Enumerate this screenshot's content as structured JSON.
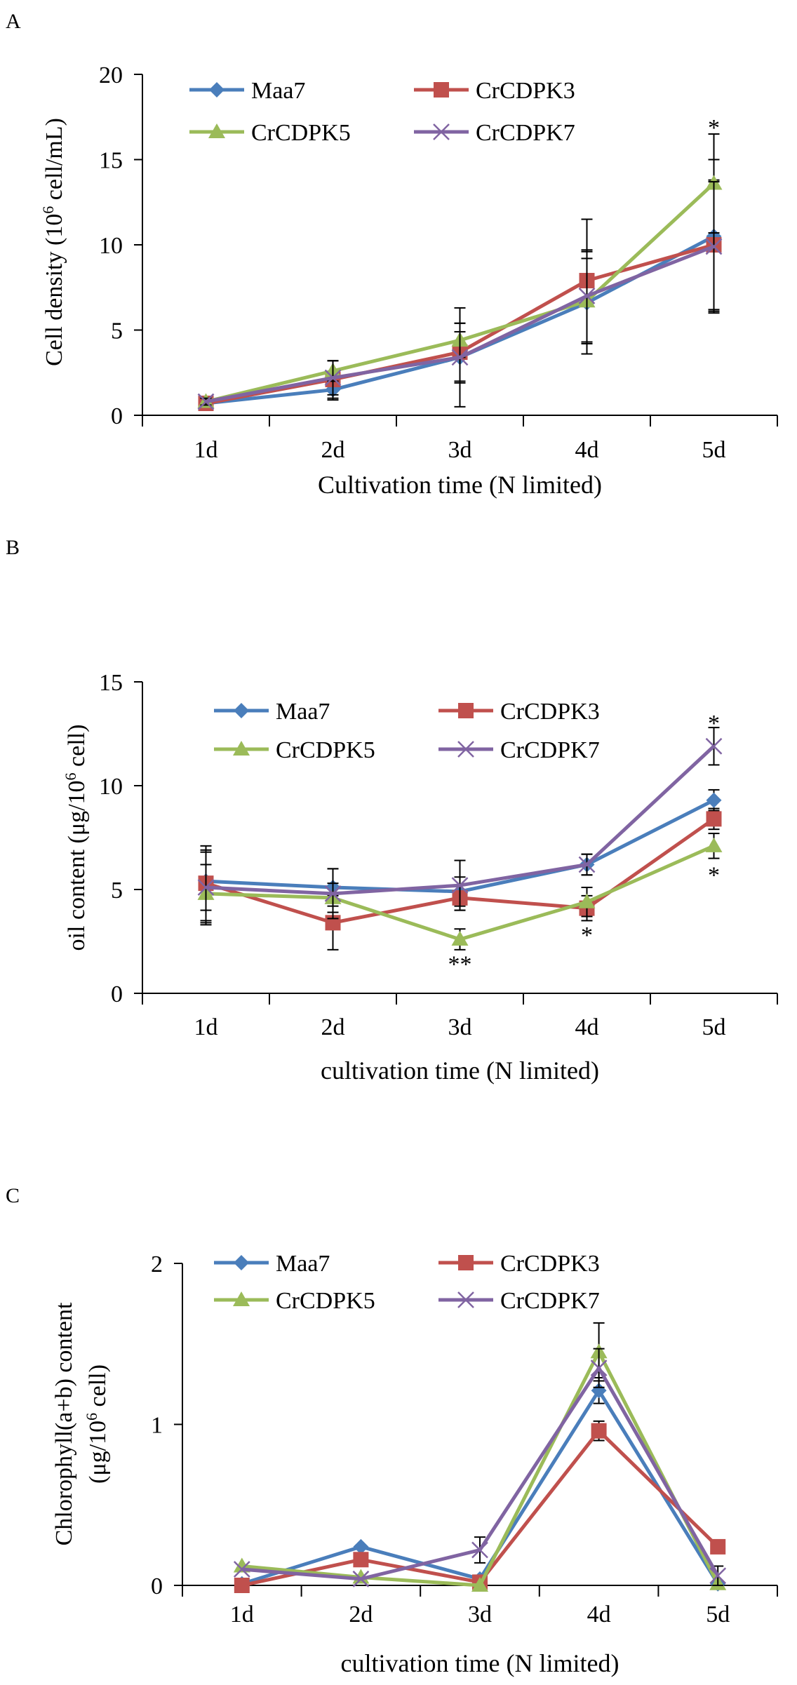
{
  "colors": {
    "Maa7": "#4a7ebb",
    "CrCDPK3": "#c0504d",
    "CrCDPK5": "#9bbb59",
    "CrCDPK7": "#8064a2"
  },
  "chart_data": [
    {
      "type": "line",
      "panel_label": "A",
      "title": "",
      "xlabel": "Cultivation time (N limited)",
      "ylabel_main": "Cell density (10",
      "ylabel_sup": "6",
      "ylabel_tail": " cell/mL)",
      "categories": [
        "1d",
        "2d",
        "3d",
        "4d",
        "5d"
      ],
      "ylim": [
        0,
        20
      ],
      "yticks": [
        0,
        5,
        10,
        15,
        20
      ],
      "legend_position": "top",
      "series": [
        {
          "name": "Maa7",
          "values": [
            0.7,
            1.5,
            3.4,
            6.6,
            10.5
          ],
          "err": [
            0.2,
            0.6,
            1.5,
            3.0,
            4.5
          ]
        },
        {
          "name": "CrCDPK3",
          "values": [
            0.7,
            2.1,
            3.7,
            7.9,
            10.0
          ],
          "err": [
            0.2,
            1.1,
            1.7,
            3.6,
            3.8
          ]
        },
        {
          "name": "CrCDPK5",
          "values": [
            0.8,
            2.6,
            4.4,
            6.7,
            13.6
          ],
          "err": [
            0.2,
            0.6,
            1.0,
            2.5,
            2.9
          ]
        },
        {
          "name": "CrCDPK7",
          "values": [
            0.8,
            2.2,
            3.4,
            7.0,
            9.9
          ],
          "err": [
            0.2,
            1.0,
            2.9,
            2.7,
            3.8
          ]
        }
      ],
      "annotations": [
        {
          "category": "5d",
          "value": 17.0,
          "text": "*"
        }
      ]
    },
    {
      "type": "line",
      "panel_label": "B",
      "title": "",
      "xlabel": "cultivation time (N limited)",
      "ylabel_main": "oil content (μg/10",
      "ylabel_sup": "6",
      "ylabel_tail": " cell)",
      "categories": [
        "1d",
        "2d",
        "3d",
        "4d",
        "5d"
      ],
      "ylim": [
        0,
        15
      ],
      "yticks": [
        0,
        5,
        10,
        15
      ],
      "legend_position": "top",
      "series": [
        {
          "name": "Maa7",
          "values": [
            5.4,
            5.1,
            4.9,
            6.2,
            9.3
          ],
          "err": [
            1.4,
            0.9,
            0.7,
            0.5,
            0.5
          ]
        },
        {
          "name": "CrCDPK3",
          "values": [
            5.3,
            3.4,
            4.6,
            4.1,
            8.4
          ],
          "err": [
            1.8,
            1.3,
            0.6,
            0.6,
            0.5
          ]
        },
        {
          "name": "CrCDPK5",
          "values": [
            4.8,
            4.6,
            2.6,
            4.4,
            7.1
          ],
          "err": [
            1.4,
            0.7,
            0.5,
            0.7,
            0.6
          ]
        },
        {
          "name": "CrCDPK7",
          "values": [
            5.1,
            4.8,
            5.2,
            6.2,
            11.9
          ],
          "err": [
            1.8,
            1.2,
            1.2,
            0.5,
            0.9
          ]
        }
      ],
      "annotations": [
        {
          "category": "3d",
          "value": 1.5,
          "text": "**"
        },
        {
          "category": "4d",
          "value": 2.9,
          "text": "*"
        },
        {
          "category": "5d",
          "value": 5.8,
          "text": "*"
        },
        {
          "category": "5d",
          "value": 13.1,
          "text": "*"
        }
      ]
    },
    {
      "type": "line",
      "panel_label": "C",
      "title": "",
      "xlabel": "cultivation time (N limited)",
      "ylabel_line1": "Chlorophyll(a+b) content",
      "ylabel_main": "(μg/10",
      "ylabel_sup": "6",
      "ylabel_tail": " cell)",
      "categories": [
        "1d",
        "2d",
        "3d",
        "4d",
        "5d"
      ],
      "ylim": [
        0,
        2
      ],
      "yticks": [
        0,
        1,
        2
      ],
      "legend_position": "top",
      "series": [
        {
          "name": "Maa7",
          "values": [
            0.01,
            0.24,
            0.04,
            1.21,
            0.01
          ],
          "err": [
            0.0,
            0.0,
            0.02,
            0.08,
            0.0
          ]
        },
        {
          "name": "CrCDPK3",
          "values": [
            0.0,
            0.16,
            0.02,
            0.96,
            0.24
          ],
          "err": [
            0.0,
            0.02,
            0.02,
            0.06,
            0.0
          ]
        },
        {
          "name": "CrCDPK5",
          "values": [
            0.12,
            0.05,
            0.0,
            1.45,
            0.01
          ],
          "err": [
            0.0,
            0.0,
            0.0,
            0.18,
            0.0
          ]
        },
        {
          "name": "CrCDPK7",
          "values": [
            0.1,
            0.04,
            0.22,
            1.35,
            0.06
          ],
          "err": [
            0.0,
            0.0,
            0.08,
            0.12,
            0.06
          ]
        }
      ],
      "annotations": []
    }
  ]
}
